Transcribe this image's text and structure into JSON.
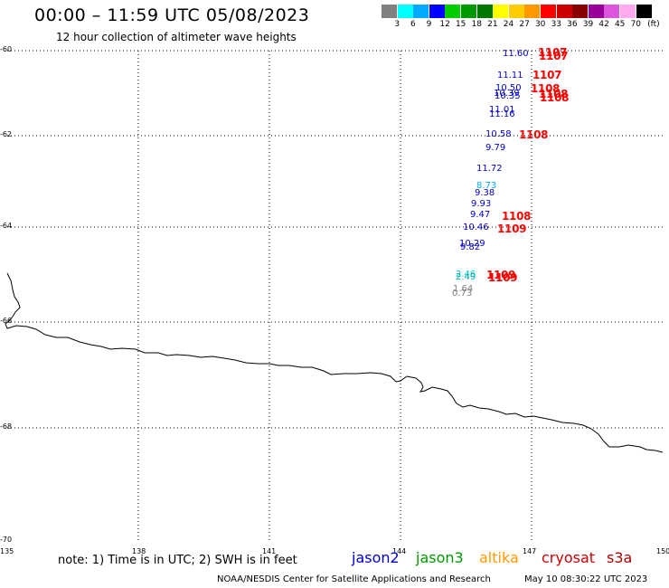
{
  "title": "00:00 – 11:59 UTC 05/08/2023",
  "subtitle": "12 hour collection of altimeter wave heights",
  "colorbar": {
    "colors": [
      "#808080",
      "#00ffff",
      "#00aaff",
      "#0000ff",
      "#00cc00",
      "#009900",
      "#007700",
      "#ffff00",
      "#ffcc00",
      "#ff9900",
      "#ff0000",
      "#cc0000",
      "#880000",
      "#990099",
      "#dd55dd",
      "#ffaaee",
      "#000000"
    ],
    "labels": [
      "3",
      "6",
      "9",
      "12",
      "15",
      "18",
      "21",
      "24",
      "27",
      "30",
      "33",
      "36",
      "39",
      "42",
      "45",
      "70"
    ],
    "unit": "(ft)"
  },
  "map": {
    "lat_labels": [
      "-60",
      "-62",
      "-64",
      "-66",
      "-68",
      "-70"
    ],
    "lon_labels": [
      "135",
      "138",
      "141",
      "144",
      "147",
      "150"
    ],
    "grid": true
  },
  "observations": [
    {
      "text": "11.60",
      "color": "#0000cc"
    },
    {
      "text": "11.11",
      "color": "#0000cc"
    },
    {
      "text": "10.50",
      "color": "#0000cc"
    },
    {
      "text": "10.39",
      "color": "#0000cc"
    },
    {
      "text": "10.35",
      "color": "#0000cc"
    },
    {
      "text": "11.01",
      "color": "#0000cc"
    },
    {
      "text": "11.16",
      "color": "#0000cc"
    },
    {
      "text": "10.58",
      "color": "#0000cc"
    },
    {
      "text": "9.79",
      "color": "#0000cc"
    },
    {
      "text": "11.72",
      "color": "#0000cc"
    },
    {
      "text": "8.73",
      "color": "#00aaff"
    },
    {
      "text": "9.38",
      "color": "#0000cc"
    },
    {
      "text": "9.93",
      "color": "#0000cc"
    },
    {
      "text": "9.47",
      "color": "#0000cc"
    },
    {
      "text": "10.46",
      "color": "#0000cc"
    },
    {
      "text": "10.29",
      "color": "#0000cc"
    },
    {
      "text": "9.82",
      "color": "#0000cc"
    },
    {
      "text": "2.46",
      "color": "#00cccc"
    },
    {
      "text": "2.49",
      "color": "#00aaaa"
    },
    {
      "text": "1.64",
      "color": "#808080"
    },
    {
      "text": "0.73",
      "color": "#808080"
    }
  ],
  "hour_labels": [
    "1107",
    "1107",
    "1107",
    "1108",
    "1108",
    "1108",
    "1108",
    "1108",
    "1109",
    "1109"
  ],
  "note": "note: 1) Time is in UTC; 2) SWH is in feet",
  "satellites": [
    {
      "name": "jason2",
      "color": "#0000cc"
    },
    {
      "name": "jason3",
      "color": "#009900"
    },
    {
      "name": "altika",
      "color": "#ff9900"
    },
    {
      "name": "cryosat",
      "color": "#cc0000"
    },
    {
      "name": "s3a",
      "color": "#aa0000"
    }
  ],
  "credit": "NOAA/NESDIS Center for Satellite Applications and Research",
  "timestamp": "May 10 08:30:22 UTC 2023"
}
